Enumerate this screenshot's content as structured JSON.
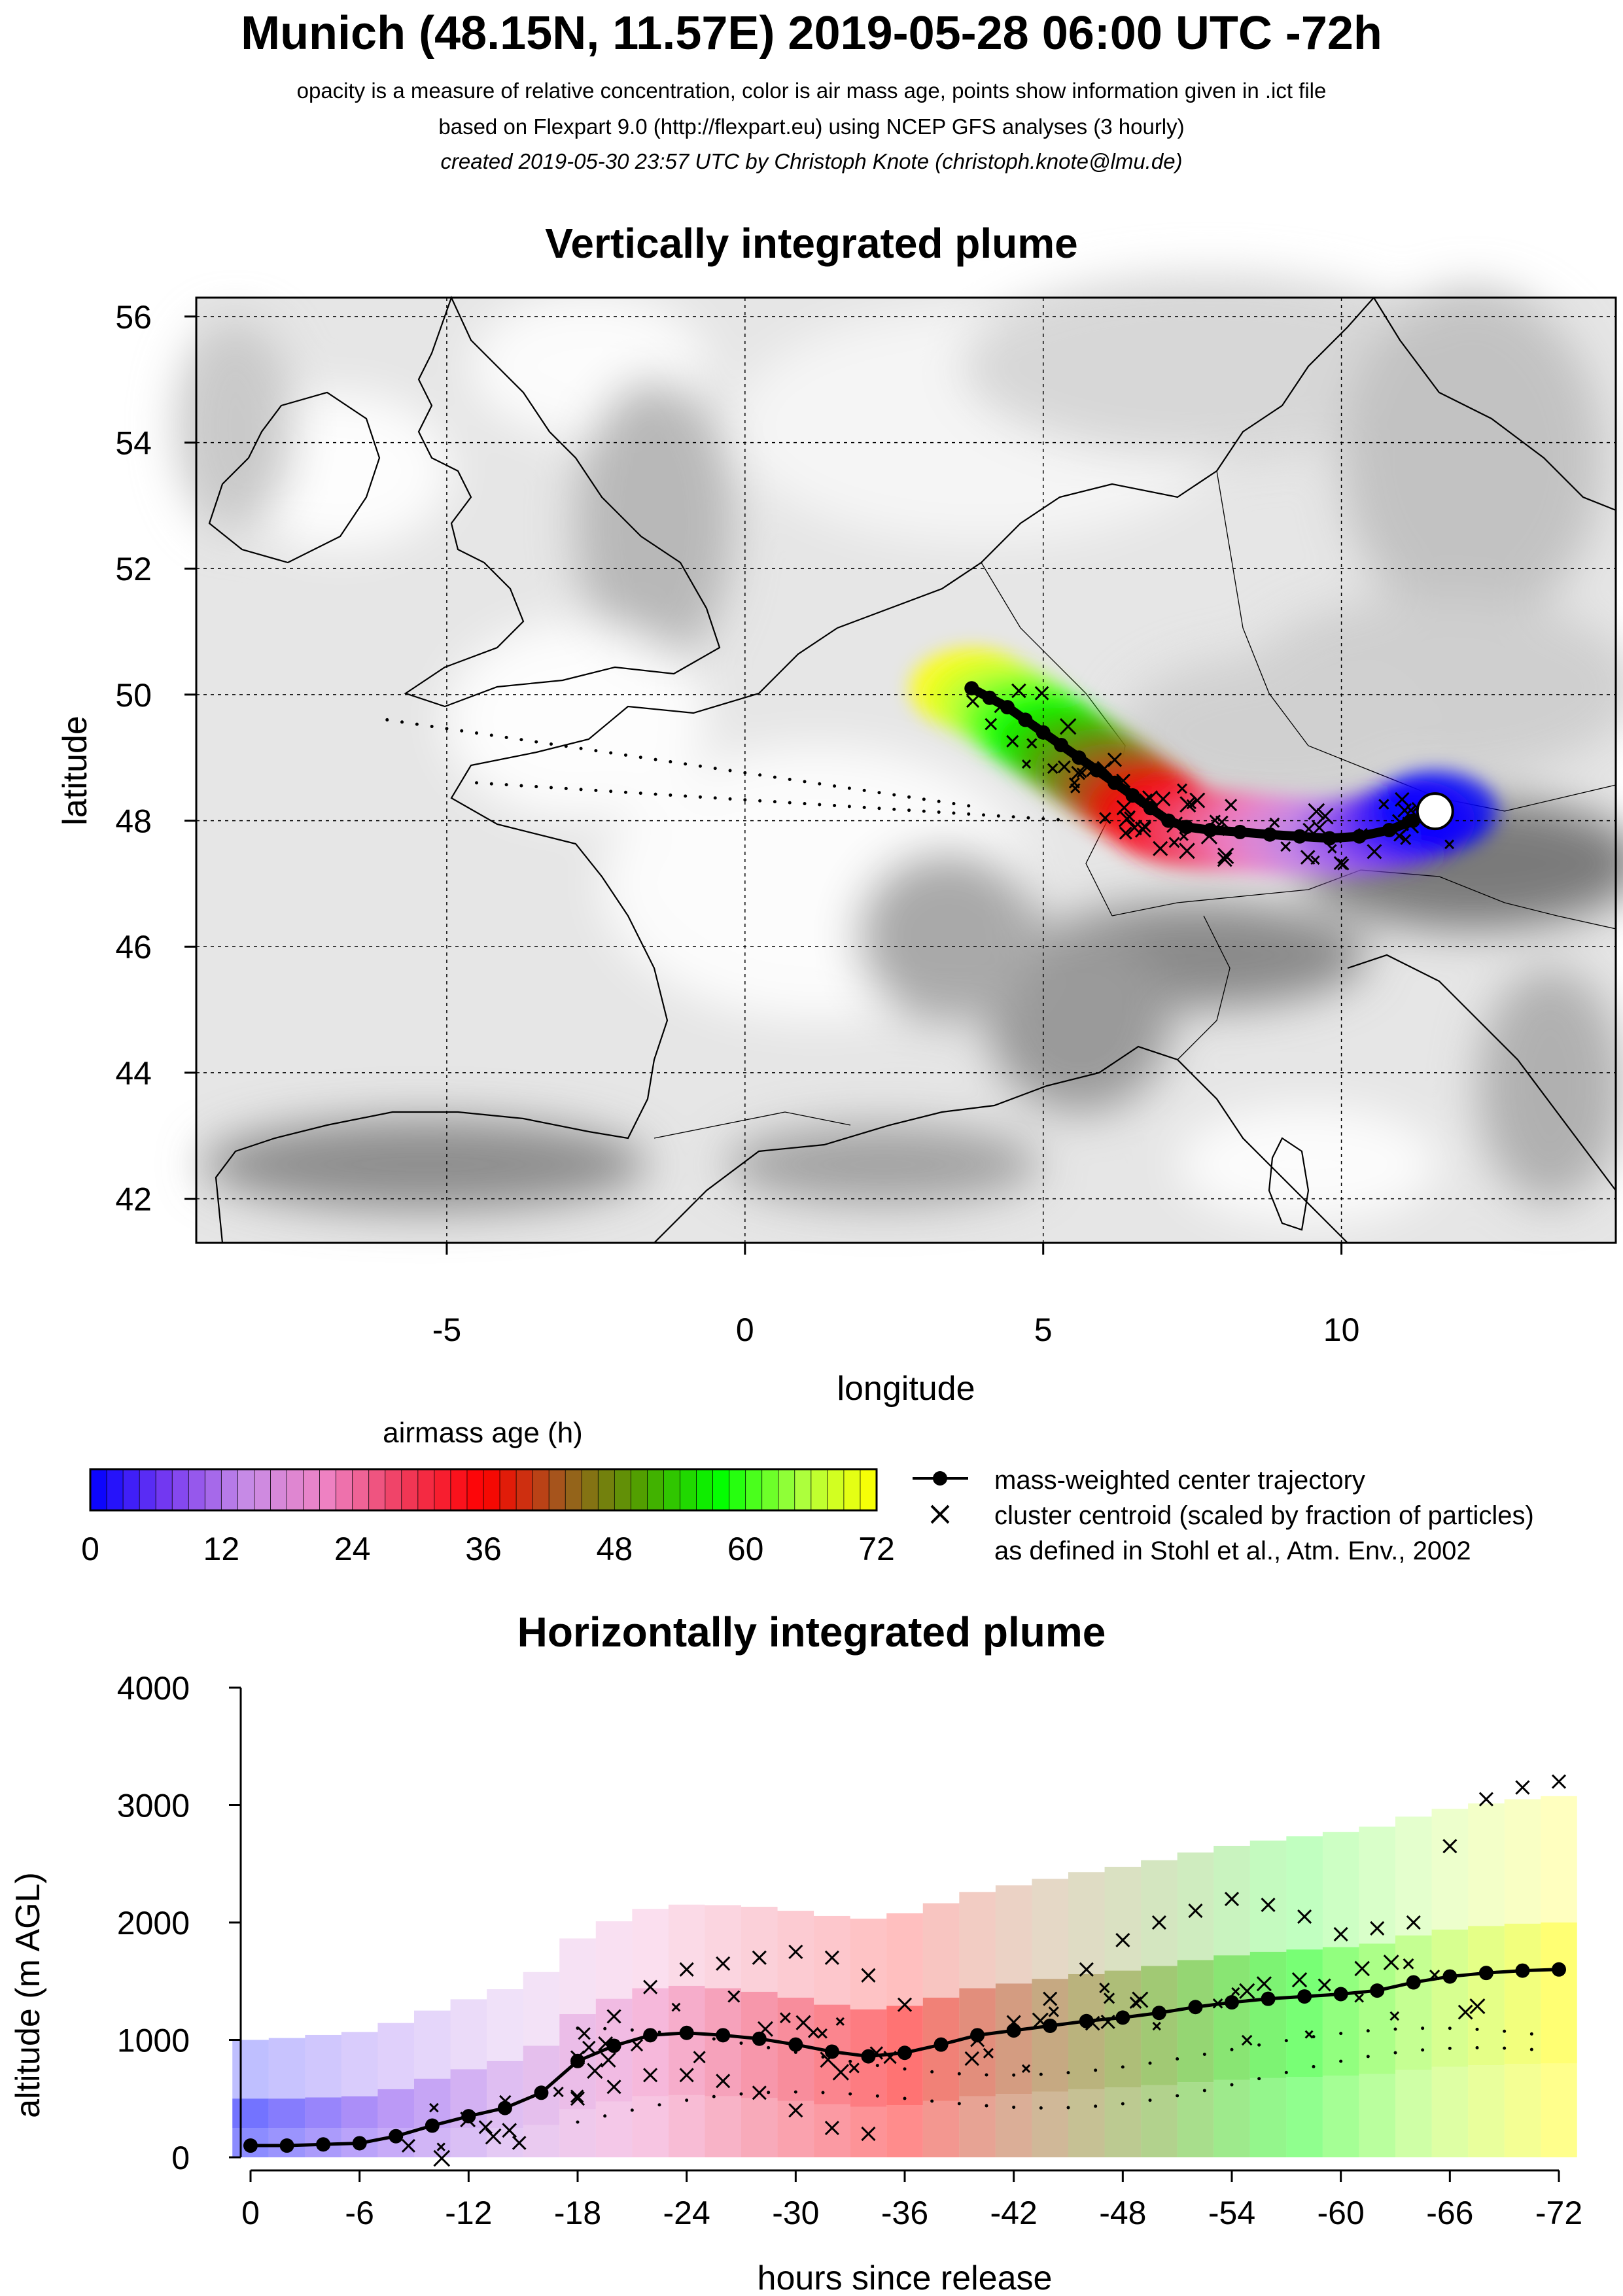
{
  "header": {
    "title": "Munich (48.15N, 11.57E) 2019-05-28 06:00 UTC -72h",
    "subtitle_1": "opacity is a measure of relative concentration, color is air mass age, points show information given in .ict file",
    "subtitle_2": "based on Flexpart 9.0 (http://flexpart.eu) using NCEP GFS analyses (3 hourly)",
    "subtitle_3": "created 2019-05-30 23:57 UTC by Christoph Knote (christoph.knote@lmu.de)"
  },
  "map_panel": {
    "title": "Vertically integrated plume",
    "xlabel": "longitude",
    "ylabel": "latitude"
  },
  "colorbar": {
    "title": "airmass age (h)",
    "ticks": [
      "0",
      "12",
      "24",
      "36",
      "48",
      "60",
      "72"
    ],
    "stops": [
      "#0000ff",
      "#7a3cf0",
      "#c88ce6",
      "#ee82c4",
      "#f03a5a",
      "#ff0000",
      "#a05a1e",
      "#50a000",
      "#00ff00",
      "#a8ff40",
      "#ffff00"
    ]
  },
  "legend": {
    "items": [
      {
        "marker": "line-dot",
        "label": "mass-weighted center trajectory"
      },
      {
        "marker": "cross",
        "label": "cluster centroid (scaled by fraction of particles)"
      },
      {
        "marker": "none",
        "label": "as defined in Stohl et al., Atm. Env., 2002"
      }
    ]
  },
  "altitude_panel": {
    "title": "Horizontally integrated plume",
    "xlabel": "hours since release",
    "ylabel": "altitude (m AGL)"
  },
  "chart_data": [
    {
      "type": "scatter",
      "title": "Vertically integrated plume",
      "xlabel": "longitude",
      "ylabel": "latitude",
      "xlim": [
        -9.2,
        14.6
      ],
      "ylim": [
        41.3,
        56.3
      ],
      "x_ticks": [
        "-5",
        "0",
        "5",
        "10"
      ],
      "x_tick_values": [
        -5,
        0,
        5,
        10
      ],
      "y_ticks": [
        "42",
        "44",
        "46",
        "48",
        "50",
        "52",
        "54",
        "56"
      ],
      "y_tick_values": [
        42,
        44,
        46,
        48,
        50,
        52,
        54,
        56
      ],
      "grid": true,
      "release_point": {
        "lon": 11.57,
        "lat": 48.15
      },
      "series": [
        {
          "name": "mass-weighted center trajectory",
          "lon": [
            11.57,
            11.2,
            10.8,
            10.3,
            9.8,
            9.3,
            8.8,
            8.3,
            7.8,
            7.4,
            7.1,
            6.8,
            6.5,
            6.2,
            5.9,
            5.6,
            5.3,
            5.0,
            4.7,
            4.4,
            4.1,
            3.8
          ],
          "lat": [
            48.15,
            48.0,
            47.85,
            47.75,
            47.72,
            47.75,
            47.78,
            47.82,
            47.85,
            47.9,
            48.0,
            48.2,
            48.4,
            48.6,
            48.8,
            49.0,
            49.2,
            49.4,
            49.6,
            49.8,
            49.95,
            50.1
          ]
        }
      ],
      "plume_age_hours": [
        0,
        6,
        12,
        18,
        24,
        30,
        36,
        42,
        48,
        54,
        60,
        66,
        72
      ]
    },
    {
      "type": "line",
      "title": "Horizontally integrated plume",
      "xlabel": "hours since release",
      "ylabel": "altitude (m AGL)",
      "xlim": [
        0,
        -72
      ],
      "ylim": [
        0,
        4000
      ],
      "x_ticks": [
        "0",
        "-6",
        "-12",
        "-18",
        "-24",
        "-30",
        "-36",
        "-42",
        "-48",
        "-54",
        "-60",
        "-66",
        "-72"
      ],
      "x_tick_values": [
        0,
        -6,
        -12,
        -18,
        -24,
        -30,
        -36,
        -42,
        -48,
        -54,
        -60,
        -66,
        -72
      ],
      "y_ticks": [
        "0",
        "1000",
        "2000",
        "3000",
        "4000"
      ],
      "y_tick_values": [
        0,
        1000,
        2000,
        3000,
        4000
      ],
      "series": [
        {
          "name": "mass-weighted center trajectory",
          "x": [
            0,
            -2,
            -4,
            -6,
            -8,
            -10,
            -12,
            -14,
            -16,
            -18,
            -20,
            -22,
            -24,
            -26,
            -28,
            -30,
            -32,
            -34,
            -36,
            -38,
            -40,
            -42,
            -44,
            -46,
            -48,
            -50,
            -52,
            -54,
            -56,
            -58,
            -60,
            -62,
            -64,
            -66,
            -68,
            -70,
            -72
          ],
          "y": [
            100,
            100,
            110,
            120,
            180,
            270,
            350,
            420,
            550,
            820,
            950,
            1040,
            1060,
            1040,
            1010,
            960,
            900,
            860,
            890,
            960,
            1040,
            1080,
            1120,
            1160,
            1190,
            1230,
            1280,
            1320,
            1350,
            1370,
            1390,
            1420,
            1490,
            1540,
            1570,
            1590,
            1600
          ]
        },
        {
          "name": "cluster centroid upper",
          "x": [
            -18,
            -20,
            -22,
            -24,
            -26,
            -28,
            -30,
            -32,
            -34,
            -36
          ],
          "y": [
            850,
            1200,
            1450,
            1600,
            1650,
            1700,
            1750,
            1700,
            1550,
            1300
          ]
        },
        {
          "name": "cluster centroid high",
          "x": [
            -40,
            -42,
            -44,
            -46,
            -48,
            -50,
            -52,
            -54,
            -56,
            -58,
            -60,
            -62,
            -64,
            -66,
            -68,
            -70,
            -72
          ],
          "y": [
            1000,
            1150,
            1350,
            1600,
            1850,
            2000,
            2100,
            2200,
            2150,
            2050,
            1900,
            1950,
            2000,
            2650,
            3050,
            3150,
            3200
          ]
        },
        {
          "name": "cluster centroid lower",
          "x": [
            -18,
            -20,
            -22,
            -24,
            -26,
            -28,
            -30,
            -32,
            -34
          ],
          "y": [
            500,
            600,
            700,
            700,
            650,
            550,
            400,
            250,
            200
          ]
        }
      ]
    }
  ]
}
